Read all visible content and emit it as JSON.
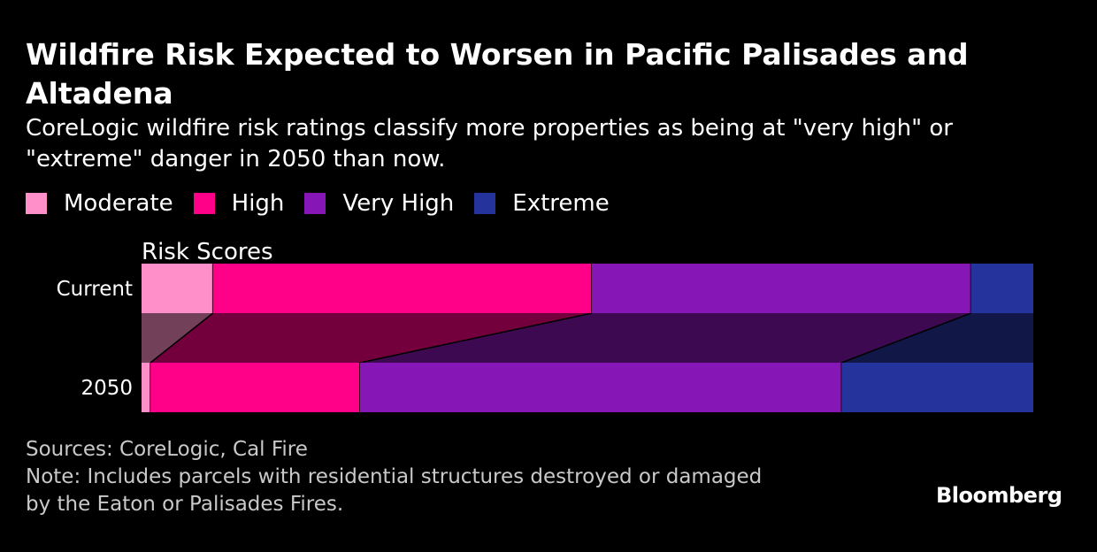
{
  "header": {
    "title": "Wildfire Risk Expected to Worsen in Pacific Palisades and Altadena",
    "subtitle": "CoreLogic wildfire risk ratings classify more properties as being at \"very high\" or \"extreme\" danger in 2050 than now."
  },
  "legend": [
    {
      "label": "Moderate",
      "color": "#ff8fc8"
    },
    {
      "label": "High",
      "color": "#ff0088"
    },
    {
      "label": "Very High",
      "color": "#8716b6"
    },
    {
      "label": "Extreme",
      "color": "#25349c"
    }
  ],
  "chart_data": {
    "type": "bar",
    "stacked": true,
    "normalized": true,
    "xlabel": "Risk Scores",
    "categories": [
      "Current",
      "2050"
    ],
    "series": [
      {
        "name": "Moderate",
        "color": "#ff8fc8",
        "values": [
          8,
          1
        ]
      },
      {
        "name": "High",
        "color": "#ff0088",
        "values": [
          42.5,
          23.5
        ]
      },
      {
        "name": "Very High",
        "color": "#8716b6",
        "values": [
          42.5,
          54
        ]
      },
      {
        "name": "Extreme",
        "color": "#25349c",
        "values": [
          7,
          21.5
        ]
      }
    ],
    "unit": "percent of properties",
    "legend_position": "top-left",
    "grid": false
  },
  "footer": {
    "sources": "Sources: CoreLogic, Cal Fire",
    "note_line1": "Note: Includes parcels with residential structures destroyed or damaged",
    "note_line2": "by the Eaton or Palisades Fires."
  },
  "brand": {
    "logo": "Bloomberg"
  }
}
